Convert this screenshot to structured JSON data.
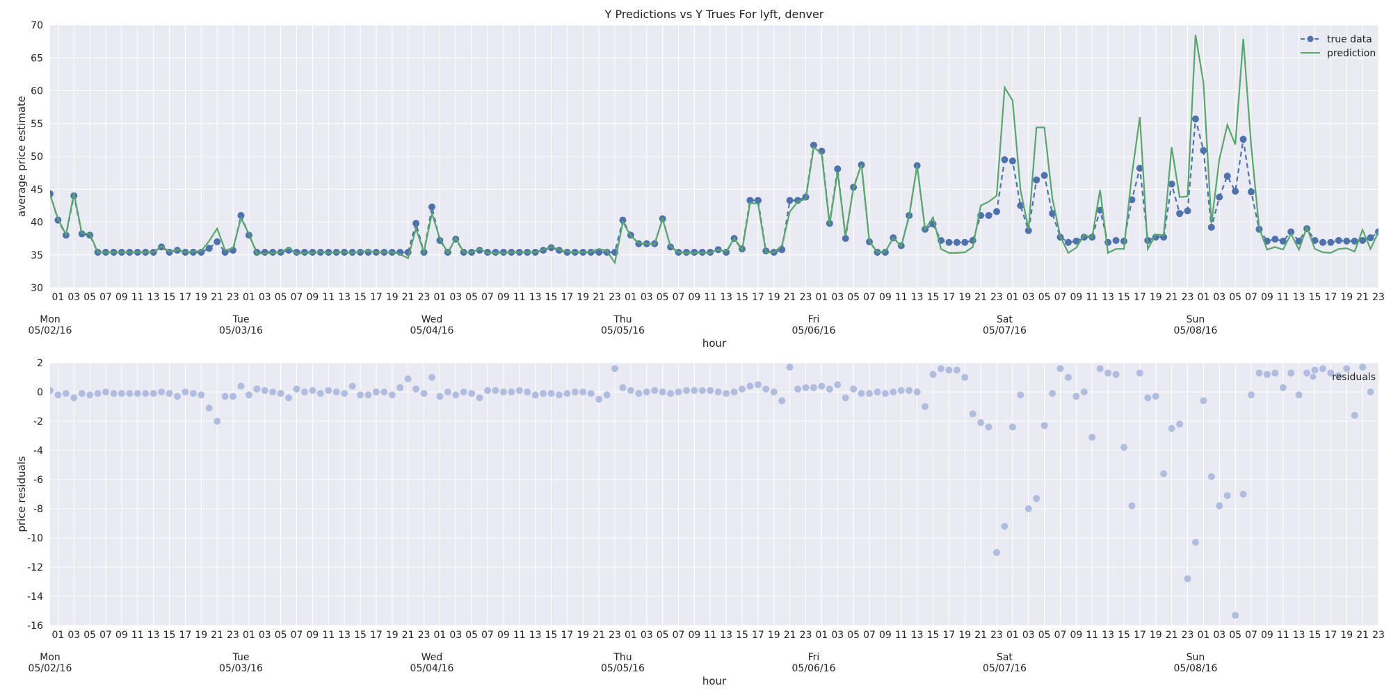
{
  "chart_data": [
    {
      "type": "line",
      "title": "Y Predictions vs Y Trues For lyft, denver",
      "xlabel": "hour",
      "ylabel": "average price estimate",
      "ylim": [
        30,
        70
      ],
      "yticks": [
        30,
        35,
        40,
        45,
        50,
        55,
        60,
        65,
        70
      ],
      "grid": true,
      "legend": "top-right",
      "x_start": "05/02/16 00:00",
      "hours": 168,
      "hour_tick_labels": [
        "01",
        "03",
        "05",
        "07",
        "09",
        "11",
        "13",
        "15",
        "17",
        "19",
        "21",
        "23"
      ],
      "day_labels": [
        {
          "day": "Mon",
          "date": "05/02/16"
        },
        {
          "day": "Tue",
          "date": "05/03/16"
        },
        {
          "day": "Wed",
          "date": "05/04/16"
        },
        {
          "day": "Thu",
          "date": "05/05/16"
        },
        {
          "day": "Fri",
          "date": "05/06/16"
        },
        {
          "day": "Sat",
          "date": "05/07/16"
        },
        {
          "day": "Sun",
          "date": "05/08/16"
        }
      ],
      "series": [
        {
          "name": "true data",
          "style": "dashed line with circle markers",
          "color": "#4c72b0",
          "values": [
            44.3,
            40.3,
            38,
            44,
            38.2,
            38,
            35.4,
            35.4,
            35.4,
            35.4,
            35.4,
            35.4,
            35.4,
            35.4,
            36.2,
            35.4,
            35.7,
            35.4,
            35.4,
            35.4,
            36,
            37,
            35.4,
            35.7,
            41,
            38,
            35.4,
            35.4,
            35.4,
            35.4,
            35.7,
            35.4,
            35.4,
            35.4,
            35.4,
            35.4,
            35.4,
            35.4,
            35.4,
            35.4,
            35.4,
            35.4,
            35.4,
            35.4,
            35.4,
            35.4,
            39.8,
            35.4,
            42.3,
            37.2,
            35.4,
            37.4,
            35.4,
            35.4,
            35.7,
            35.4,
            35.4,
            35.4,
            35.4,
            35.4,
            35.4,
            35.4,
            35.7,
            36.1,
            35.7,
            35.4,
            35.4,
            35.4,
            35.4,
            35.4,
            35.4,
            35.4,
            40.3,
            38,
            36.7,
            36.7,
            36.7,
            40.5,
            36.2,
            35.4,
            35.4,
            35.4,
            35.4,
            35.4,
            35.8,
            35.4,
            37.5,
            35.9,
            43.3,
            43.3,
            35.6,
            35.4,
            35.8,
            43.3,
            43.3,
            43.8,
            51.7,
            50.8,
            39.8,
            48.1,
            37.5,
            45.3,
            48.7,
            37,
            35.4,
            35.4,
            37.6,
            36.4,
            41,
            48.6,
            38.9,
            39.7,
            37.2,
            36.9,
            36.9,
            36.9,
            37.2,
            41,
            41,
            41.6,
            49.5,
            49.3,
            42.5,
            38.7,
            46.4,
            47.1,
            41.3,
            37.7,
            36.9,
            37.1,
            37.7,
            37.7,
            41.8,
            36.9,
            37.2,
            37.1,
            43.4,
            48.2,
            37.2,
            37.7,
            37.7,
            45.8,
            41.3,
            41.7,
            55.7,
            50.9,
            39.2,
            43.8,
            47,
            44.7,
            52.6,
            44.6,
            38.9,
            37.1,
            37.4,
            37.1,
            38.5,
            37.1,
            39,
            37.2,
            36.9,
            36.9,
            37.2,
            37.1,
            37.1,
            37.2,
            37.6,
            38.5
          ]
        },
        {
          "name": "prediction",
          "style": "solid line",
          "color": "#55a868",
          "values": [
            44.2,
            40.5,
            38.1,
            44.4,
            38.3,
            38.2,
            35.4,
            35.4,
            35.4,
            35.4,
            35.4,
            35.4,
            35.4,
            35.4,
            36.3,
            35.5,
            35.8,
            35.4,
            35.5,
            35.6,
            37.1,
            39,
            35.7,
            36,
            40.6,
            38.2,
            35.2,
            35.2,
            35.3,
            35.4,
            36.1,
            35.2,
            35.3,
            35.3,
            35.5,
            35.3,
            35.4,
            35.4,
            35.3,
            35.5,
            35.6,
            35.4,
            35.4,
            35.4,
            35.1,
            34.5,
            39,
            35.4,
            41.3,
            37.5,
            35.3,
            37.6,
            35.4,
            35.4,
            35.9,
            35.3,
            35.3,
            35.3,
            35.4,
            35.4,
            35.4,
            35.4,
            35.8,
            36.2,
            35.8,
            35.5,
            35.4,
            35.4,
            35.5,
            35.9,
            35.6,
            33.8,
            40,
            37.9,
            36.8,
            36.7,
            36.6,
            40.5,
            36.3,
            35.4,
            35.3,
            35.3,
            35.3,
            35.3,
            35.8,
            35.5,
            37.5,
            35.7,
            42.9,
            42.8,
            35.4,
            35.4,
            36.4,
            41.6,
            43.1,
            43.5,
            51.4,
            50.4,
            39.6,
            47.6,
            37.9,
            45.1,
            48.8,
            37.1,
            35.4,
            35.5,
            37.6,
            36.3,
            40.9,
            48.6,
            38.9,
            40.7,
            35.9,
            35.3,
            35.3,
            35.4,
            36.2,
            42.5,
            43.1,
            44,
            60.5,
            58.5,
            44.9,
            38.9,
            54.4,
            54.4,
            43.6,
            37.8,
            35.3,
            36.1,
            38,
            37.7,
            44.9,
            35.3,
            35.9,
            35.9,
            47.2,
            56,
            35.9,
            38.1,
            38,
            51.4,
            43.8,
            43.9,
            68.5,
            61.2,
            39.8,
            49.6,
            54.8,
            51.8,
            67.9,
            51.6,
            39.1,
            35.8,
            36.2,
            35.8,
            38.2,
            35.8,
            39.2,
            35.9,
            35.4,
            35.3,
            35.9,
            36,
            35.5,
            38.8,
            35.9,
            38.5
          ]
        }
      ]
    },
    {
      "type": "scatter",
      "title": "",
      "xlabel": "hour",
      "ylabel": "price residuals",
      "ylim": [
        -16,
        2
      ],
      "yticks": [
        -16,
        -14,
        -12,
        -10,
        -8,
        -6,
        -4,
        -2,
        0,
        2
      ],
      "grid": true,
      "legend": "top-right",
      "x_start": "05/02/16 00:00",
      "hours": 168,
      "hour_tick_labels": [
        "01",
        "03",
        "05",
        "07",
        "09",
        "11",
        "13",
        "15",
        "17",
        "19",
        "21",
        "23"
      ],
      "day_labels": [
        {
          "day": "Mon",
          "date": "05/02/16"
        },
        {
          "day": "Tue",
          "date": "05/03/16"
        },
        {
          "day": "Wed",
          "date": "05/04/16"
        },
        {
          "day": "Thu",
          "date": "05/05/16"
        },
        {
          "day": "Fri",
          "date": "05/06/16"
        },
        {
          "day": "Sat",
          "date": "05/07/16"
        },
        {
          "day": "Sun",
          "date": "05/08/16"
        }
      ],
      "series": [
        {
          "name": "residuals",
          "color": "#aebde0",
          "values": [
            0.1,
            -0.2,
            -0.1,
            -0.4,
            -0.1,
            -0.2,
            -0.1,
            0,
            -0.1,
            -0.1,
            -0.1,
            -0.1,
            -0.1,
            -0.1,
            0,
            -0.1,
            -0.3,
            0,
            -0.1,
            -0.2,
            -1.1,
            -2,
            -0.3,
            -0.3,
            0.4,
            -0.2,
            0.2,
            0.1,
            0,
            -0.1,
            -0.4,
            0.2,
            0,
            0.1,
            -0.1,
            0.1,
            0,
            -0.1,
            0.4,
            -0.2,
            -0.2,
            0,
            0,
            -0.2,
            0.3,
            0.9,
            0.2,
            -0.1,
            1,
            -0.3,
            0,
            -0.2,
            0,
            -0.1,
            -0.4,
            0.1,
            0.1,
            0,
            0,
            0.1,
            0,
            -0.2,
            -0.1,
            -0.1,
            -0.2,
            -0.1,
            0,
            0,
            -0.1,
            -0.5,
            -0.2,
            1.6,
            0.3,
            0.1,
            -0.1,
            0,
            0.1,
            0,
            -0.1,
            0,
            0.1,
            0.1,
            0.1,
            0.1,
            0,
            -0.1,
            0,
            0.2,
            0.4,
            0.5,
            0.2,
            0,
            -0.6,
            1.7,
            0.2,
            0.3,
            0.3,
            0.4,
            0.2,
            0.5,
            -0.4,
            0.2,
            -0.1,
            -0.1,
            0,
            -0.1,
            0,
            0.1,
            0.1,
            0,
            -1,
            1.2,
            1.6,
            1.5,
            1.5,
            1,
            -1.5,
            -2.1,
            -2.4,
            -11,
            -9.2,
            -2.4,
            -0.2,
            -8,
            -7.3,
            -2.3,
            -0.1,
            1.6,
            1,
            -0.3,
            0,
            -3.1,
            1.6,
            1.3,
            1.2,
            -3.8,
            -7.8,
            1.3,
            -0.4,
            -0.3,
            -5.6,
            -2.5,
            -2.2,
            -12.8,
            -10.3,
            -0.6,
            -5.8,
            -7.8,
            -7.1,
            -15.3,
            -7,
            -0.2,
            1.3,
            1.2,
            1.3,
            0.3,
            1.3,
            -0.2,
            1.3,
            1.5,
            1.6,
            1.3,
            1.1,
            1.6,
            -1.6,
            1.7,
            0
          ]
        }
      ]
    }
  ]
}
